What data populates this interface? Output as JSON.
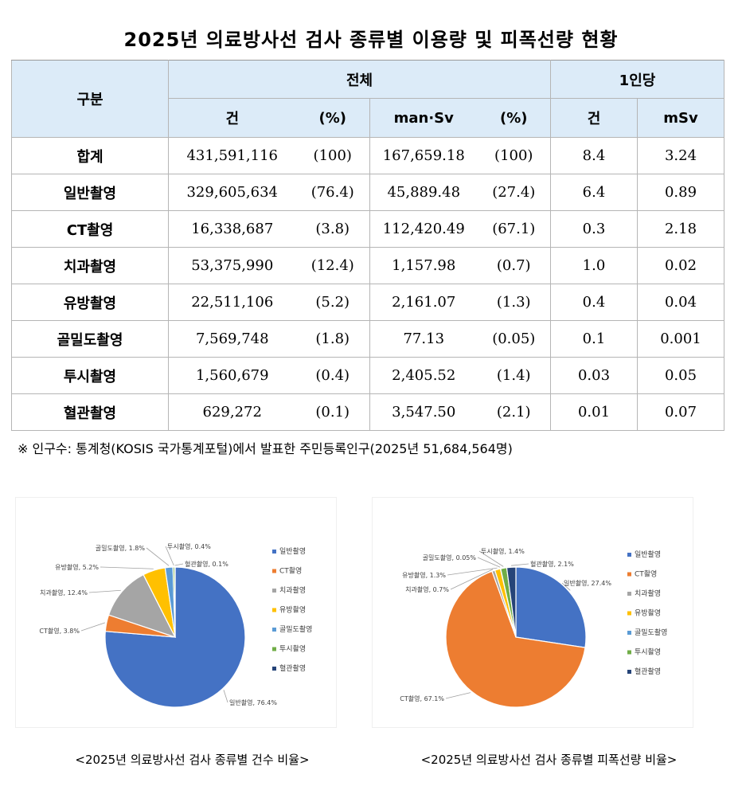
{
  "title": "2025년 의료방사선 검사 종류별 이용량 및 피폭선량 현황",
  "table": {
    "header_group": "구분",
    "header_total": "전체",
    "header_per_capita": "1인당",
    "sub_count": "건",
    "sub_pct": "(%)",
    "sub_mansv": "man·Sv",
    "sub_pct2": "(%)",
    "sub_pc_count": "건",
    "sub_pc_msv": "mSv",
    "rows": [
      {
        "name": "합계",
        "count": "431,591,116",
        "count_pct": "(100)",
        "mansv": "167,659.18",
        "mansv_pct": "(100)",
        "pc_count": "8.4",
        "pc_msv": "3.24"
      },
      {
        "name": "일반촬영",
        "count": "329,605,634",
        "count_pct": "(76.4)",
        "mansv": "45,889.48",
        "mansv_pct": "(27.4)",
        "pc_count": "6.4",
        "pc_msv": "0.89"
      },
      {
        "name": "CT촬영",
        "count": "16,338,687",
        "count_pct": "(3.8)",
        "mansv": "112,420.49",
        "mansv_pct": "(67.1)",
        "pc_count": "0.3",
        "pc_msv": "2.18"
      },
      {
        "name": "치과촬영",
        "count": "53,375,990",
        "count_pct": "(12.4)",
        "mansv": "1,157.98",
        "mansv_pct": "(0.7)",
        "pc_count": "1.0",
        "pc_msv": "0.02"
      },
      {
        "name": "유방촬영",
        "count": "22,511,106",
        "count_pct": "(5.2)",
        "mansv": "2,161.07",
        "mansv_pct": "(1.3)",
        "pc_count": "0.4",
        "pc_msv": "0.04"
      },
      {
        "name": "골밀도촬영",
        "count": "7,569,748",
        "count_pct": "(1.8)",
        "mansv": "77.13",
        "mansv_pct": "(0.05)",
        "pc_count": "0.1",
        "pc_msv": "0.001"
      },
      {
        "name": "투시촬영",
        "count": "1,560,679",
        "count_pct": "(0.4)",
        "mansv": "2,405.52",
        "mansv_pct": "(1.4)",
        "pc_count": "0.03",
        "pc_msv": "0.05"
      },
      {
        "name": "혈관촬영",
        "count": "629,272",
        "count_pct": "(0.1)",
        "mansv": "3,547.50",
        "mansv_pct": "(2.1)",
        "pc_count": "0.01",
        "pc_msv": "0.07"
      }
    ]
  },
  "note": "※ 인구수: 통계청(KOSIS 국가통계포털)에서 발표한 주민등록인구(2025년 51,684,564명)",
  "chart_data": [
    {
      "type": "pie",
      "title": "",
      "categories": [
        "일반촬영",
        "CT촬영",
        "치과촬영",
        "유방촬영",
        "골밀도촬영",
        "투시촬영",
        "혈관촬영"
      ],
      "values": [
        76.4,
        3.8,
        12.4,
        5.2,
        1.8,
        0.4,
        0.1
      ],
      "labels": [
        "일반촬영, 76.4%",
        "CT촬영, 3.8%",
        "치과촬영, 12.4%",
        "유방촬영, 5.2%",
        "골밀도촬영, 1.8%",
        "투시촬영, 0.4%",
        "혈관촬영, 0.1%"
      ],
      "colors": [
        "#4472c4",
        "#ed7d31",
        "#a5a5a5",
        "#ffc000",
        "#5b9bd5",
        "#70ad47",
        "#264478"
      ],
      "legend": "right",
      "caption": "<2025년 의료방사선 검사 종류별 건수 비율>"
    },
    {
      "type": "pie",
      "title": "",
      "categories": [
        "일반촬영",
        "CT촬영",
        "치과촬영",
        "유방촬영",
        "골밀도촬영",
        "투시촬영",
        "혈관촬영"
      ],
      "values": [
        27.4,
        67.1,
        0.7,
        1.3,
        0.05,
        1.4,
        2.1
      ],
      "labels": [
        "일반촬영, 27.4%",
        "CT촬영, 67.1%",
        "치과촬영, 0.7%",
        "유방촬영, 1.3%",
        "골밀도촬영, 0.05%",
        "투시촬영, 1.4%",
        "혈관촬영, 2.1%"
      ],
      "colors": [
        "#4472c4",
        "#ed7d31",
        "#a5a5a5",
        "#ffc000",
        "#5b9bd5",
        "#70ad47",
        "#264478"
      ],
      "legend": "right",
      "caption": "<2025년 의료방사선 검사 종류별 피폭선량 비율>"
    }
  ]
}
